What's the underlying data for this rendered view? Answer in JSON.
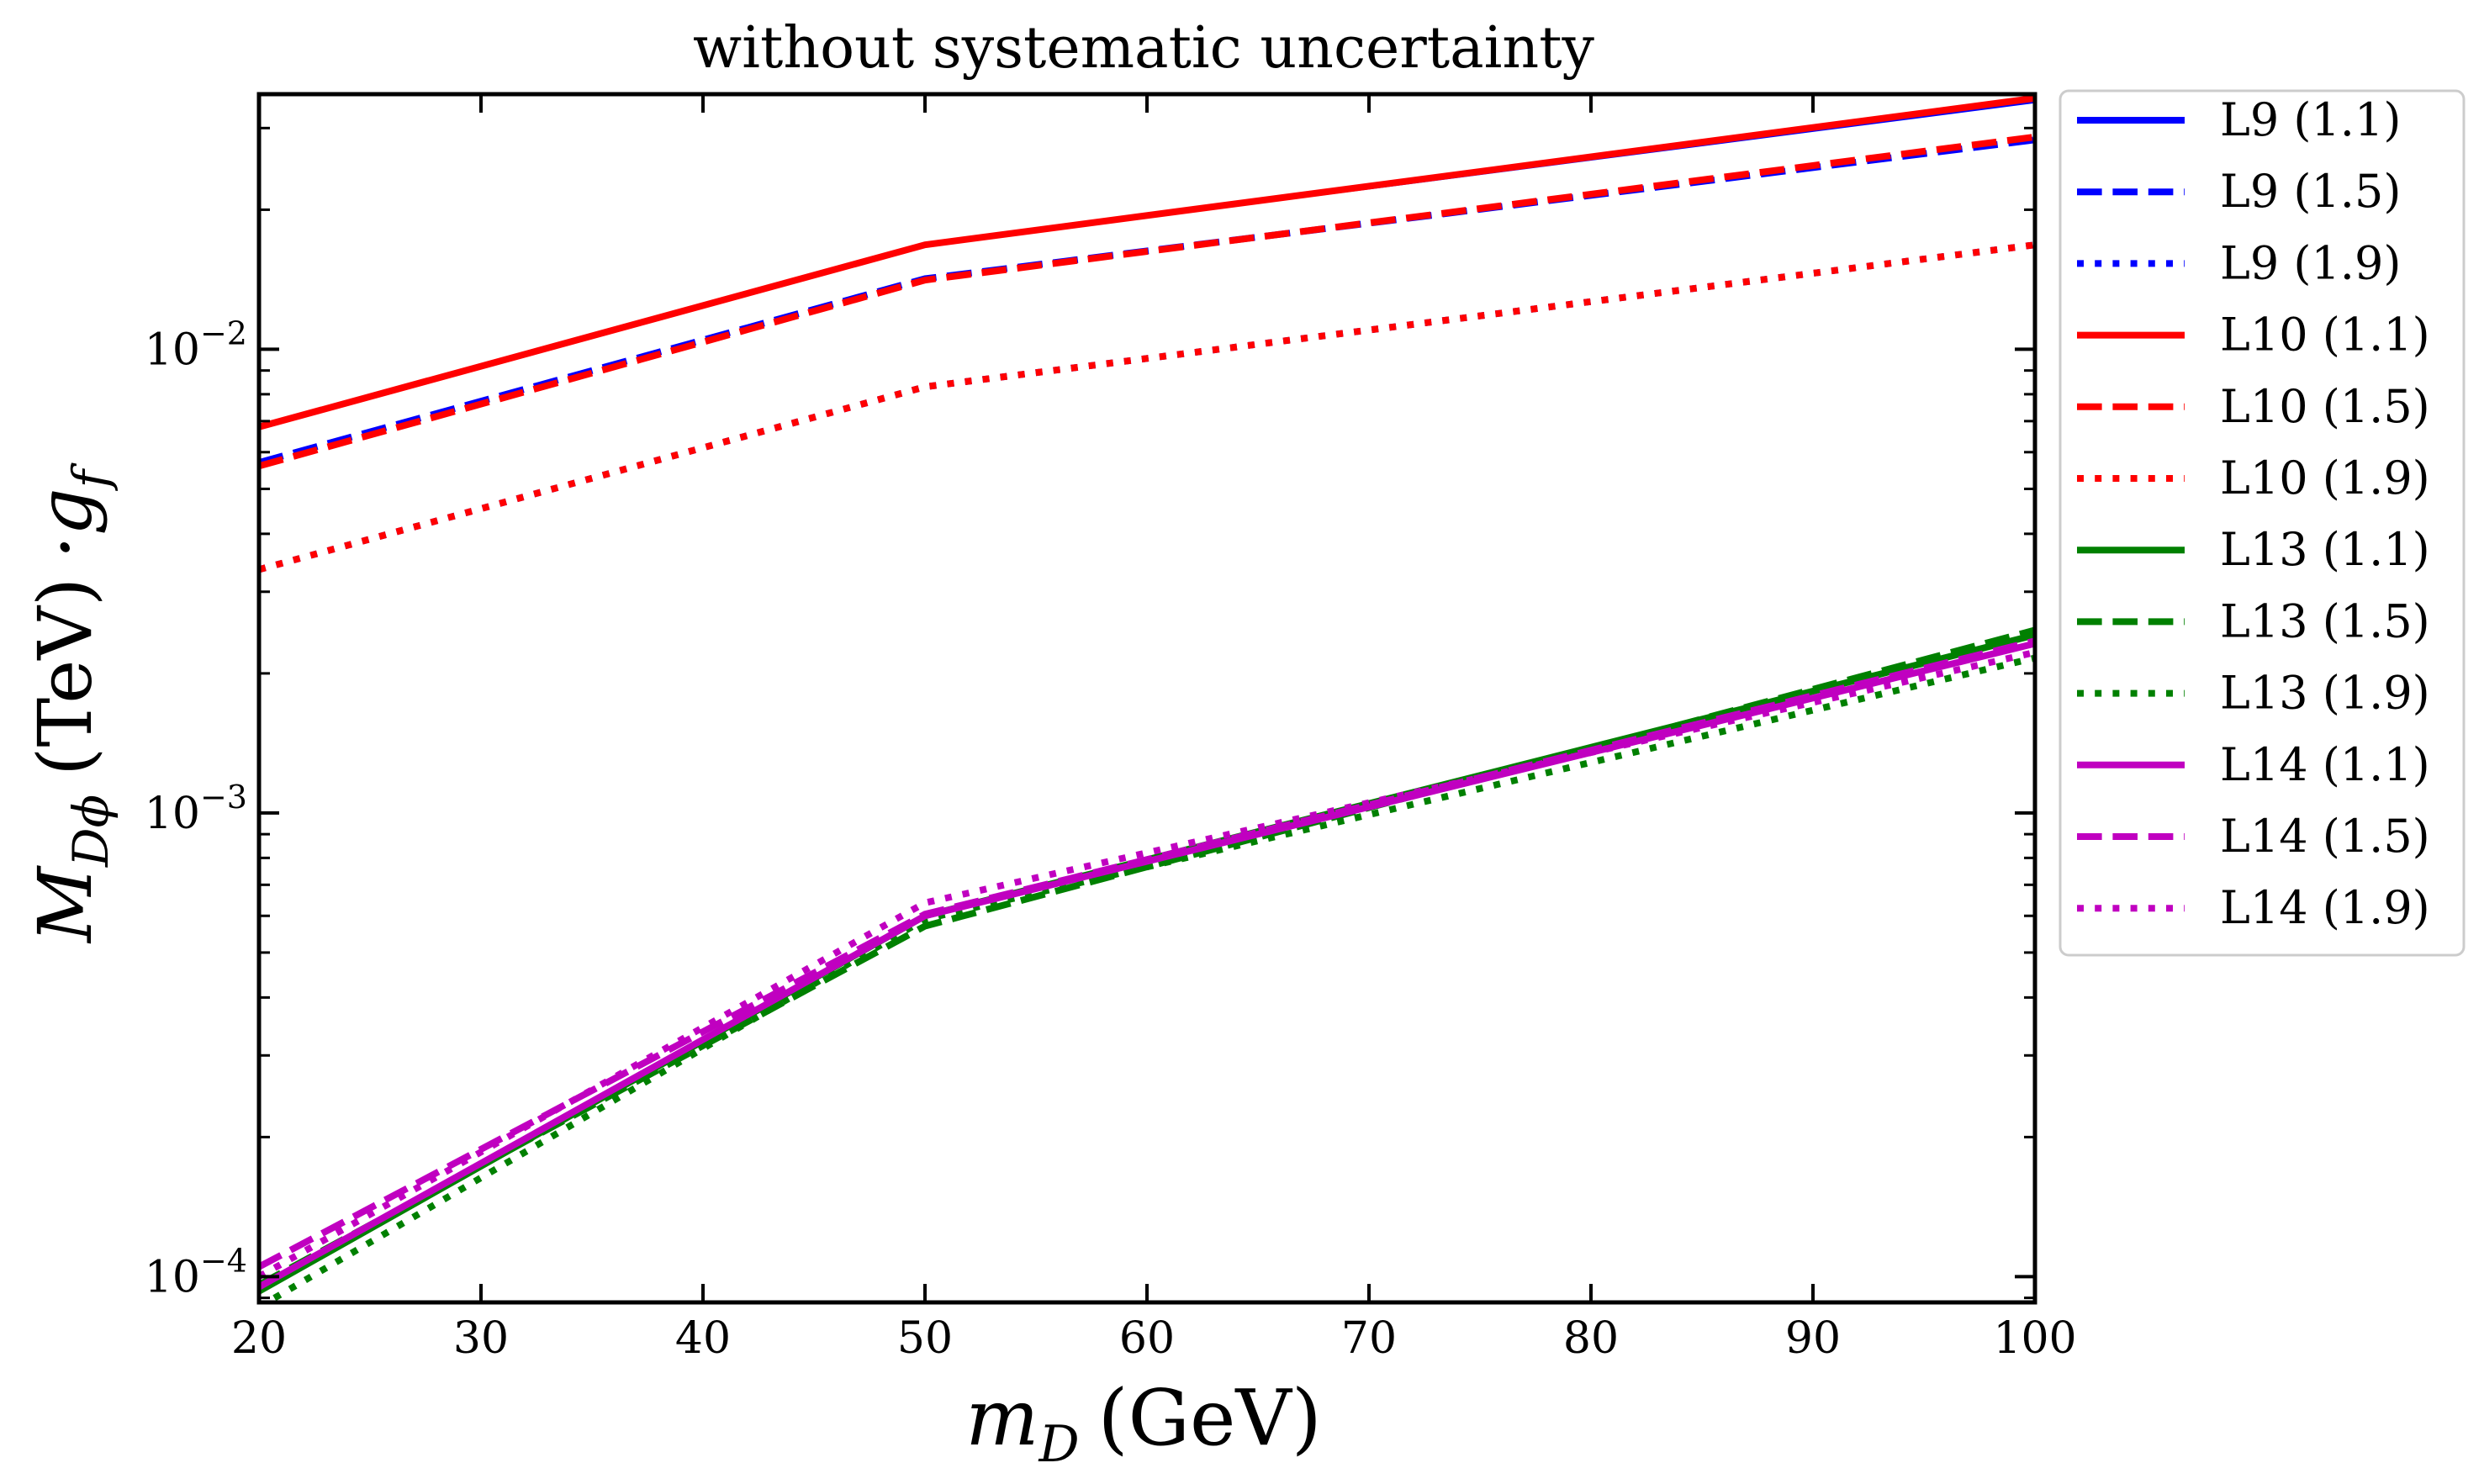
{
  "chart_data": {
    "type": "line",
    "title": "without systematic uncertainty",
    "xlabel_main": "m",
    "xlabel_sub": "D",
    "xlabel_unit": "(GeV)",
    "ylabel_main": "M",
    "ylabel_sub": "Dϕ",
    "ylabel_unit": "(TeV)",
    "ylabel_suffix_main": "·g",
    "ylabel_suffix_sub": "f",
    "xlim": [
      20,
      100
    ],
    "ylim": [
      8.8e-05,
      0.0355
    ],
    "yscale": "log",
    "xticks": [
      20,
      30,
      40,
      50,
      60,
      70,
      80,
      90,
      100
    ],
    "xtick_labels": [
      "20",
      "30",
      "40",
      "50",
      "60",
      "70",
      "80",
      "90",
      "100"
    ],
    "yticks_major": [
      {
        "value": 0.0001,
        "base": "10",
        "exp": "−4"
      },
      {
        "value": 0.001,
        "base": "10",
        "exp": "−3"
      },
      {
        "value": 0.01,
        "base": "10",
        "exp": "−2"
      }
    ],
    "grid": false,
    "legend_position": "outside-right",
    "series": [
      {
        "name": "L9 (1.1)",
        "color": "#0000ff",
        "dash": "solid",
        "x": [
          20,
          50,
          100
        ],
        "y": [
          0.0068,
          0.0168,
          0.0343
        ]
      },
      {
        "name": "L9 (1.5)",
        "color": "#0000ff",
        "dash": "dashed",
        "x": [
          20,
          50,
          100
        ],
        "y": [
          0.0057,
          0.0142,
          0.0283
        ]
      },
      {
        "name": "L9 (1.9)",
        "color": "#0000ff",
        "dash": "dotted",
        "x": [
          20,
          50,
          100
        ],
        "y": [
          0.00335,
          0.0083,
          0.0168
        ]
      },
      {
        "name": "L10 (1.1)",
        "color": "#ff0000",
        "dash": "solid",
        "x": [
          20,
          50,
          100
        ],
        "y": [
          0.0068,
          0.0168,
          0.0348
        ]
      },
      {
        "name": "L10 (1.5)",
        "color": "#ff0000",
        "dash": "dashed",
        "x": [
          20,
          50,
          100
        ],
        "y": [
          0.0056,
          0.0141,
          0.0287
        ]
      },
      {
        "name": "L10 (1.9)",
        "color": "#ff0000",
        "dash": "dotted",
        "x": [
          20,
          50,
          100
        ],
        "y": [
          0.00335,
          0.0083,
          0.0168
        ]
      },
      {
        "name": "L13 (1.1)",
        "color": "#008000",
        "dash": "solid",
        "x": [
          20,
          50,
          100
        ],
        "y": [
          9.3e-05,
          0.0006,
          0.00242
        ]
      },
      {
        "name": "L13 (1.5)",
        "color": "#008000",
        "dash": "dashed",
        "x": [
          20,
          50,
          100
        ],
        "y": [
          9.6e-05,
          0.00057,
          0.00248
        ]
      },
      {
        "name": "L13 (1.9)",
        "color": "#008000",
        "dash": "dotted",
        "x": [
          20,
          50,
          100
        ],
        "y": [
          8.6e-05,
          0.00059,
          0.00216
        ]
      },
      {
        "name": "L14 (1.1)",
        "color": "#c000c0",
        "dash": "solid",
        "x": [
          20,
          50,
          100
        ],
        "y": [
          9.5e-05,
          0.0006,
          0.00232
        ]
      },
      {
        "name": "L14 (1.5)",
        "color": "#c000c0",
        "dash": "dashed",
        "x": [
          20,
          50,
          100
        ],
        "y": [
          0.000105,
          0.000605,
          0.00235
        ]
      },
      {
        "name": "L14 (1.9)",
        "color": "#c000c0",
        "dash": "dotted",
        "x": [
          20,
          50,
          100
        ],
        "y": [
          0.0001,
          0.00064,
          0.00222
        ]
      }
    ]
  }
}
